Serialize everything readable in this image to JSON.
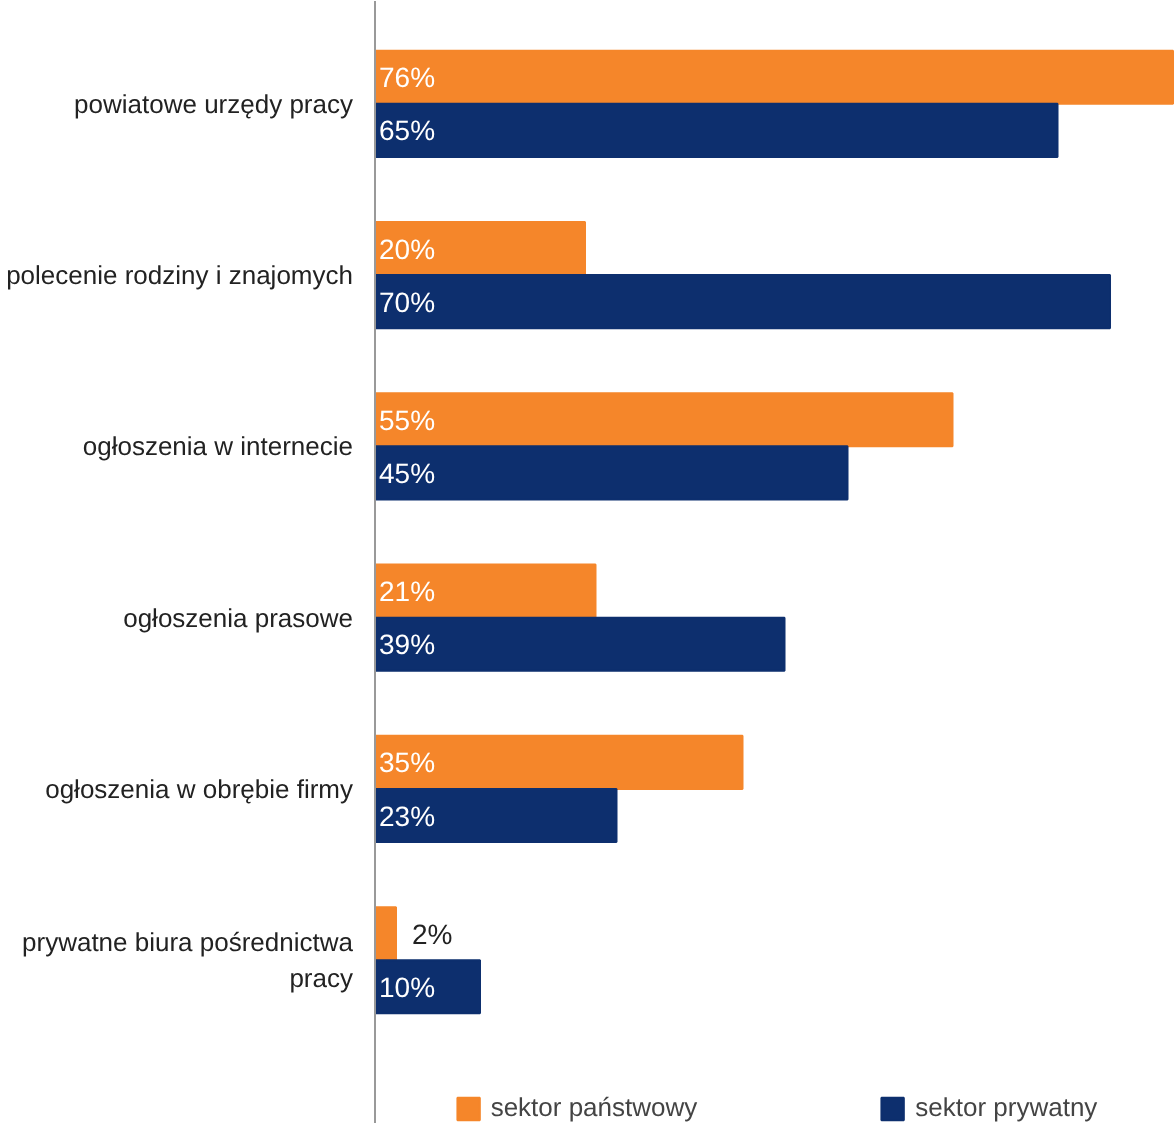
{
  "chart_data": {
    "type": "bar",
    "orientation": "horizontal",
    "categories": [
      "powiatowe urzędy pracy",
      "polecenie rodziny i znajomych",
      "ogłoszenia w internecie",
      "ogłoszenia prasowe",
      "ogłoszenia w obrębie firmy",
      "prywatne biura pośrednictwa pracy"
    ],
    "series": [
      {
        "name": "sektor państwowy",
        "color": "#f5862a",
        "values": [
          76,
          20,
          55,
          21,
          35,
          2
        ],
        "value_labels": [
          "76%",
          "20%",
          "55%",
          "21%",
          "35%",
          "2%"
        ]
      },
      {
        "name": "sektor prywatny",
        "color": "#0d2f6e",
        "values": [
          65,
          70,
          45,
          39,
          23,
          10
        ],
        "value_labels": [
          "65%",
          "70%",
          "45%",
          "39%",
          "23%",
          "10%"
        ]
      }
    ],
    "tick_labels": "y",
    "grid": false,
    "legend": "bottom"
  }
}
